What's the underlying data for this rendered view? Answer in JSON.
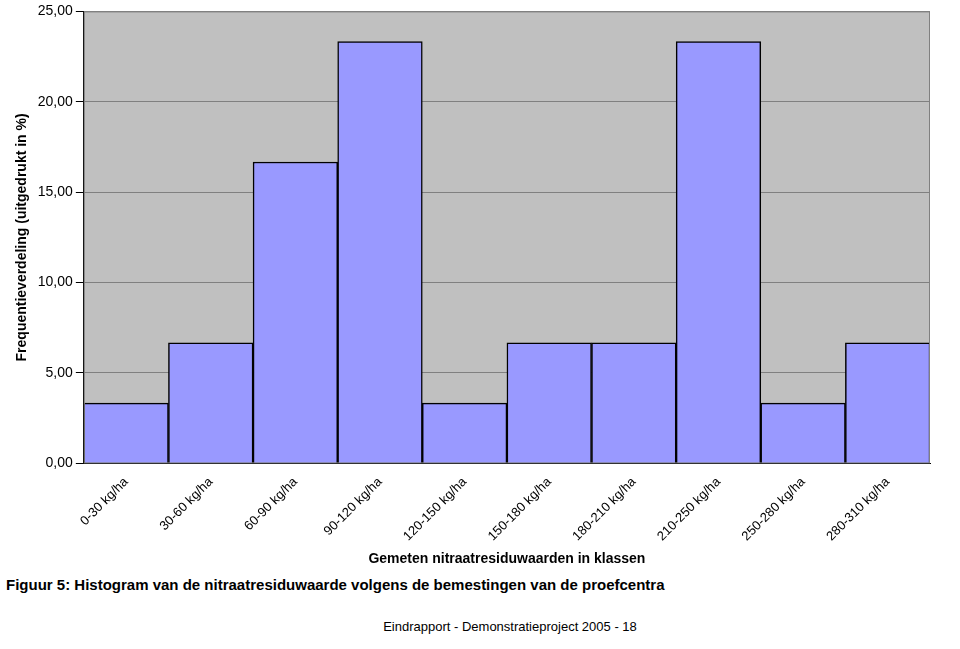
{
  "chart_data": {
    "type": "bar",
    "categories": [
      "0-30 kg/ha",
      "30-60 kg/ha",
      "60-90 kg/ha",
      "90-120 kg/ha",
      "120-150 kg/ha",
      "150-180 kg/ha",
      "180-210 kg/ha",
      "210-250 kg/ha",
      "250-280 kg/ha",
      "280-310 kg/ha"
    ],
    "values": [
      3.33,
      6.67,
      16.67,
      23.33,
      3.33,
      6.67,
      6.67,
      23.33,
      3.33,
      6.67
    ],
    "color": "#9999ff",
    "x_label": "Gemeten nitraatresiduwaarden in klassen",
    "y_label": "Frequentieverdeling (uitgedrukt in %)",
    "ylim": [
      0,
      25
    ],
    "yticks": [
      {
        "value": 0,
        "label": "0,00"
      },
      {
        "value": 5,
        "label": "5,00"
      },
      {
        "value": 10,
        "label": "10,00"
      },
      {
        "value": 15,
        "label": "15,00"
      },
      {
        "value": 20,
        "label": "20,00"
      },
      {
        "value": 25,
        "label": "25,00"
      }
    ],
    "grid": true
  },
  "caption": "Figuur 5: Histogram van de nitraatresiduwaarde volgens de bemestingen van de proefcentra",
  "footer": "Eindrapport - Demonstratieproject 2005 - 18"
}
